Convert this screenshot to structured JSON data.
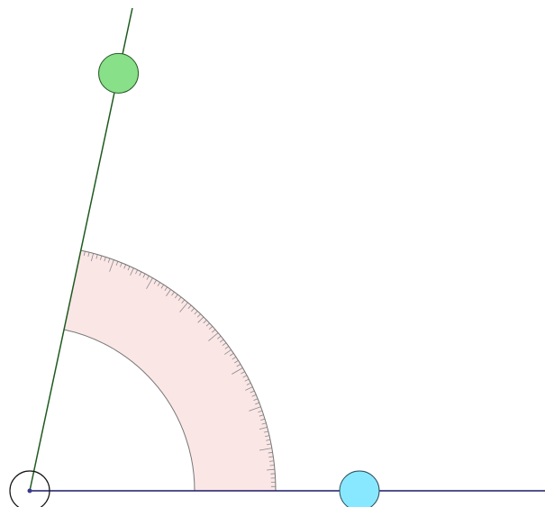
{
  "canvas": {
    "background": "#ffffff"
  },
  "angle_tool": {
    "angle_degrees": 78,
    "base_ray": {
      "color": "#1a1a66"
    },
    "rotating_ray": {
      "color": "#1f5a1f"
    },
    "vertex_handle": {
      "color": "#111111",
      "dot_color": "#3a3a8a"
    },
    "base_handle": {
      "color": "#88e8ff"
    },
    "rotating_handle": {
      "color": "#88e088"
    },
    "protractor": {
      "fill": "#fbe6e6",
      "stroke": "#777777",
      "tick_color": "#8a8a8a"
    }
  }
}
